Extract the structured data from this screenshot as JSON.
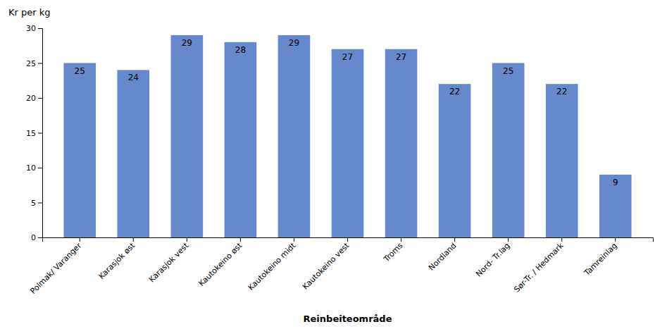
{
  "chart_data": {
    "type": "bar",
    "categories": [
      "Polmak/ Varanger",
      "Karasjok øst",
      "Karasjok vest",
      "Kautokeino øst",
      "Kautokeino midt",
      "Kautokeino vest",
      "Troms",
      "Nordland",
      "Nord- Tr.lag",
      "Sør-Tr. / Hedmark",
      "Tamreinlag"
    ],
    "values": [
      25,
      24,
      29,
      28,
      29,
      27,
      27,
      22,
      25,
      22,
      9
    ],
    "color": "#6688CC",
    "xlabel": "Reinbeiteområde",
    "ylabel": "Kr per kg",
    "ylim": [
      0,
      30
    ],
    "yticks": [
      0,
      5,
      10,
      15,
      20,
      25,
      30
    ],
    "grid": false,
    "data_labels": true
  }
}
